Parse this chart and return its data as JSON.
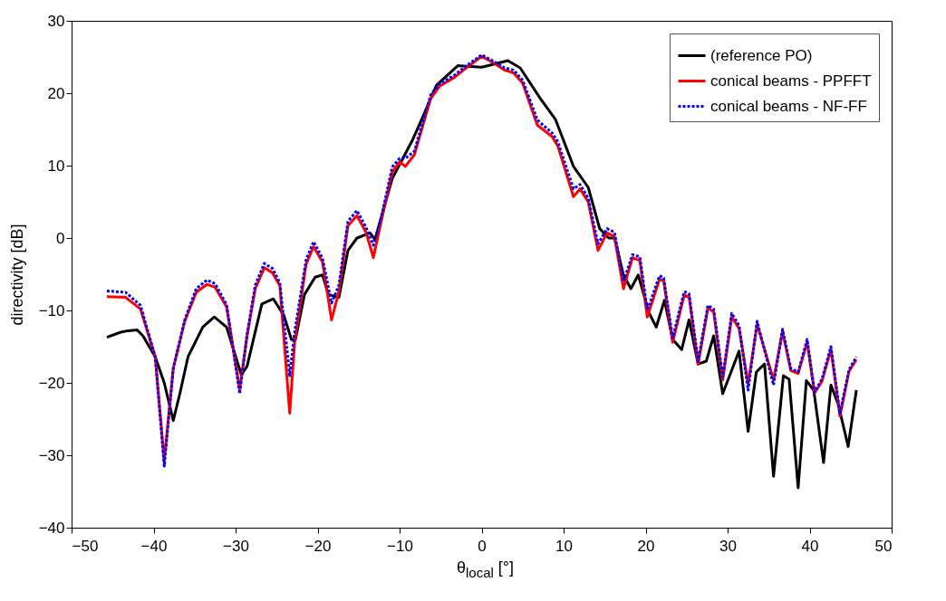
{
  "chart_data": {
    "type": "line",
    "xlabel": "θ$_{local}$ [°]",
    "ylabel": "directivity [dB]",
    "xlim": [
      -50,
      50
    ],
    "xticks": [
      -50,
      -40,
      -30,
      -20,
      -10,
      0,
      10,
      20,
      30,
      40,
      50
    ],
    "ylim": [
      -40,
      30
    ],
    "yticks": [
      -40,
      -30,
      -20,
      -10,
      0,
      10,
      20,
      30
    ],
    "legend": "top right",
    "series": [
      {
        "name": "(reference PO)",
        "color": "#000000",
        "x": [
          -45.7,
          -44,
          -43.1,
          -42,
          -41.3,
          -39.8,
          -38.7,
          -37.6,
          -36.8,
          -35.8,
          -34,
          -32.6,
          -31.1,
          -29.3,
          -28.6,
          -26.8,
          -25.4,
          -24.1,
          -23.2,
          -22.7,
          -21.6,
          -20.3,
          -19.4,
          -18.7,
          -17.4,
          -16.3,
          -15.2,
          -13.6,
          -13,
          -10.9,
          -8.4,
          -7.3,
          -5.5,
          -2.9,
          0,
          3.2,
          4.7,
          7.2,
          9,
          11.2,
          13,
          14.4,
          15.5,
          16.2,
          17.3,
          18.2,
          19.1,
          20.4,
          21.3,
          22.3,
          23.3,
          24.4,
          25.3,
          26.4,
          27.4,
          28.3,
          29.4,
          31.4,
          32.5,
          33.5,
          34.5,
          35.6,
          36.8,
          37.5,
          38.6,
          39.6,
          40.5,
          41.7,
          42.6,
          43.5,
          44.7,
          45.7
        ],
        "values": [
          -13.7,
          -13,
          -12.8,
          -12.7,
          -13.5,
          -16.4,
          -20,
          -25.2,
          -21.5,
          -16.4,
          -12.3,
          -10.9,
          -12.3,
          -18.9,
          -17.7,
          -9.1,
          -8.4,
          -10.7,
          -14,
          -14,
          -7.8,
          -5.4,
          -5.1,
          -7.8,
          -8.2,
          -1.7,
          0,
          0.7,
          -0.2,
          8.2,
          13.6,
          16.4,
          21.1,
          23.8,
          23.6,
          24.5,
          23.5,
          19.2,
          16.4,
          9.9,
          7,
          1.3,
          0,
          0,
          -5.1,
          -7,
          -5.1,
          -10.3,
          -12.3,
          -8.6,
          -14,
          -15.4,
          -11.3,
          -17.4,
          -17,
          -13.5,
          -21.5,
          -15.6,
          -26.7,
          -18.5,
          -17.4,
          -32.9,
          -19,
          -19.5,
          -34.5,
          -19.7,
          -21,
          -31,
          -20.3,
          -23,
          -28.8,
          -21
        ]
      },
      {
        "name": "conical beams - PPFFT",
        "color": "#ff0000",
        "x": [
          -45.7,
          -43.4,
          -41.6,
          -39.8,
          -38.7,
          -37.6,
          -36.2,
          -34.8,
          -33.5,
          -32.5,
          -31.1,
          -29.5,
          -28.6,
          -27.6,
          -26.5,
          -25.5,
          -24.6,
          -23.4,
          -22.8,
          -21.4,
          -20.5,
          -19.4,
          -18.3,
          -17.4,
          -16.3,
          -15.2,
          -14.1,
          -13.2,
          -12.3,
          -10.9,
          -10,
          -9.3,
          -8.2,
          -6.2,
          -5.1,
          -3.3,
          -2.2,
          0,
          1.6,
          2.8,
          3.9,
          5,
          6.8,
          8.6,
          9.3,
          11.2,
          12,
          13,
          14.2,
          15.3,
          16.2,
          17.3,
          18.4,
          19.3,
          20.2,
          21.7,
          22.2,
          23.3,
          24.7,
          25.3,
          26.4,
          27.6,
          28.3,
          29.4,
          30.5,
          31.4,
          32.5,
          33.6,
          35.6,
          36.7,
          37.7,
          38.6,
          39.7,
          40.6,
          41.5,
          42.6,
          43.7,
          44.8,
          45.7
        ],
        "values": [
          -8.1,
          -8.2,
          -9.8,
          -16.4,
          -30.8,
          -18,
          -11.5,
          -7.5,
          -6.4,
          -6.8,
          -9.5,
          -20.9,
          -13.5,
          -7,
          -4.1,
          -4.8,
          -6.6,
          -24.2,
          -14.4,
          -3.6,
          -1.2,
          -3.3,
          -11.3,
          -7.4,
          1.7,
          3.1,
          0.8,
          -2.7,
          2,
          9.1,
          10.5,
          9.9,
          11.5,
          19.3,
          21,
          22.2,
          23.2,
          25.1,
          24.1,
          23.2,
          22.8,
          21.4,
          15.6,
          14,
          12.7,
          5.7,
          6.8,
          5,
          -1.7,
          0.7,
          0.2,
          -7,
          -2.7,
          -3.1,
          -10.9,
          -5.7,
          -5.9,
          -14.4,
          -7.9,
          -8.1,
          -17.4,
          -9.7,
          -10.2,
          -19.6,
          -10.9,
          -12.5,
          -20.2,
          -11.9,
          -19.6,
          -12.9,
          -18.3,
          -18.7,
          -14.4,
          -21.4,
          -19.8,
          -15.4,
          -24.6,
          -18.4,
          -16.8
        ]
      },
      {
        "name": "conical beams - NF-FF",
        "color": "#0000ff",
        "line_style": "dotted",
        "x": [
          -45.7,
          -43.4,
          -41.6,
          -39.8,
          -38.7,
          -37.6,
          -36.2,
          -34.8,
          -33.5,
          -32.5,
          -31.1,
          -29.5,
          -28.6,
          -27.6,
          -26.5,
          -25.5,
          -24.6,
          -23.4,
          -22.8,
          -21.4,
          -20.5,
          -19.4,
          -18.3,
          -17.4,
          -16.3,
          -15.2,
          -14.1,
          -13.2,
          -12.3,
          -10.9,
          -10,
          -9.3,
          -8.2,
          -6.2,
          -5.1,
          -3.3,
          -2.2,
          0,
          1.6,
          2.8,
          3.9,
          5,
          6.8,
          8.6,
          9.3,
          11.2,
          12,
          13,
          14.2,
          15.3,
          16.2,
          17.3,
          18.4,
          19.3,
          20.2,
          21.7,
          22.2,
          23.3,
          24.7,
          25.3,
          26.4,
          27.6,
          28.3,
          29.4,
          30.5,
          31.4,
          32.5,
          33.6,
          35.6,
          36.7,
          37.7,
          38.6,
          39.7,
          40.6,
          41.5,
          42.6,
          43.7,
          44.8,
          45.7
        ],
        "values": [
          -7.3,
          -7.5,
          -9.3,
          -16.4,
          -31.5,
          -18,
          -11.3,
          -7,
          -5.8,
          -6.3,
          -9.2,
          -21.5,
          -13.3,
          -6.5,
          -3.5,
          -4.2,
          -6.2,
          -19,
          -13,
          -3,
          -0.5,
          -2.8,
          -9,
          -6.5,
          2.3,
          3.8,
          1.5,
          -1,
          2.5,
          9.8,
          11,
          11,
          12,
          19.8,
          21.3,
          22.5,
          23.5,
          25.3,
          24.3,
          23.5,
          23.2,
          21.8,
          16.3,
          14.5,
          13.3,
          6.8,
          7.4,
          5.5,
          -0.8,
          1.3,
          0.8,
          -6,
          -2.3,
          -2.6,
          -10,
          -5.2,
          -5.5,
          -13.8,
          -7.4,
          -7.7,
          -17,
          -9.3,
          -9.8,
          -19.2,
          -10.4,
          -12.1,
          -21,
          -11.5,
          -20.3,
          -12.6,
          -18,
          -18.5,
          -14,
          -21.3,
          -19.5,
          -15,
          -24.2,
          -18.2,
          -16.4
        ]
      }
    ]
  }
}
